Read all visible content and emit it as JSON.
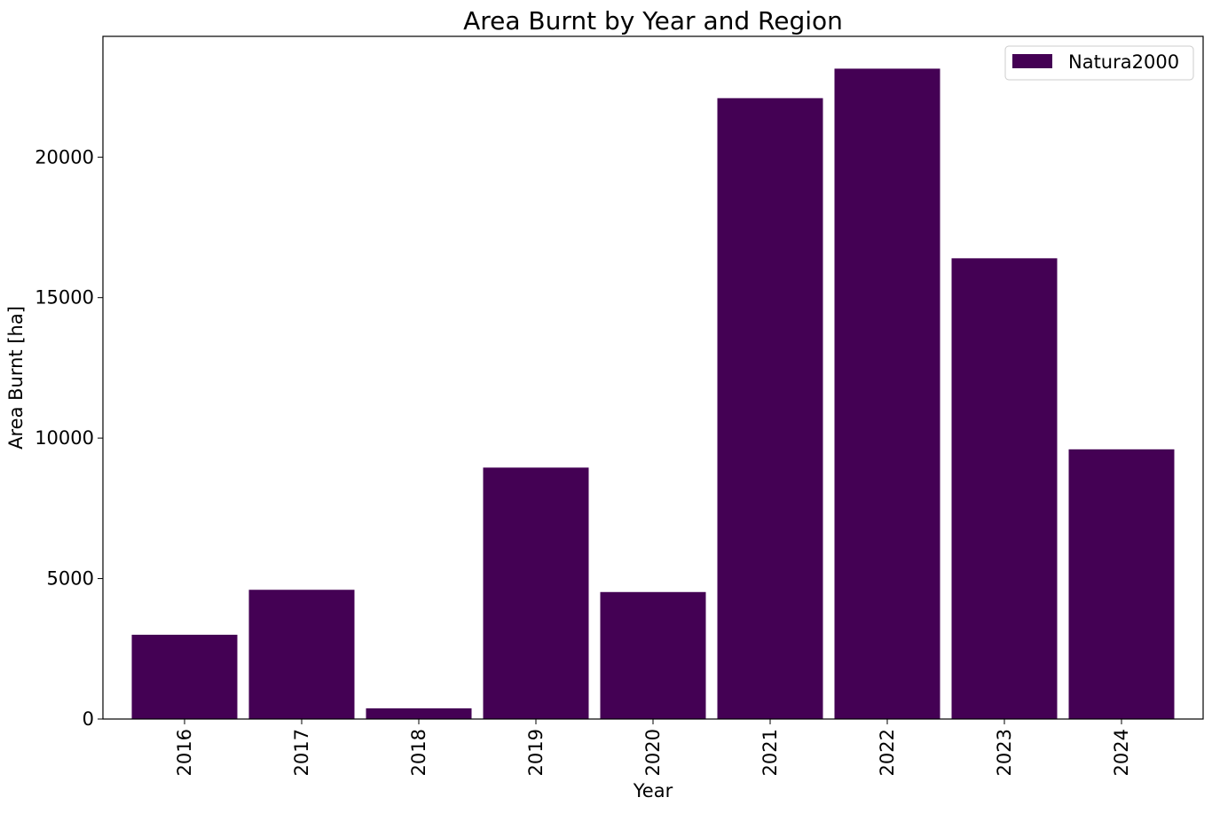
{
  "chart_data": {
    "type": "bar",
    "title": "Area Burnt by Year and Region",
    "xlabel": "Year",
    "ylabel": "Area Burnt [ha]",
    "categories": [
      "2016",
      "2017",
      "2018",
      "2019",
      "2020",
      "2021",
      "2022",
      "2023",
      "2024"
    ],
    "series": [
      {
        "name": "Natura2000",
        "color": "#440154",
        "values": [
          3000,
          4600,
          380,
          8950,
          4520,
          22100,
          23150,
          16400,
          9600
        ]
      }
    ],
    "yticks": [
      0,
      5000,
      10000,
      15000,
      20000
    ],
    "ylim": [
      0,
      24300
    ],
    "legend_position": "top-right",
    "grid": false
  }
}
